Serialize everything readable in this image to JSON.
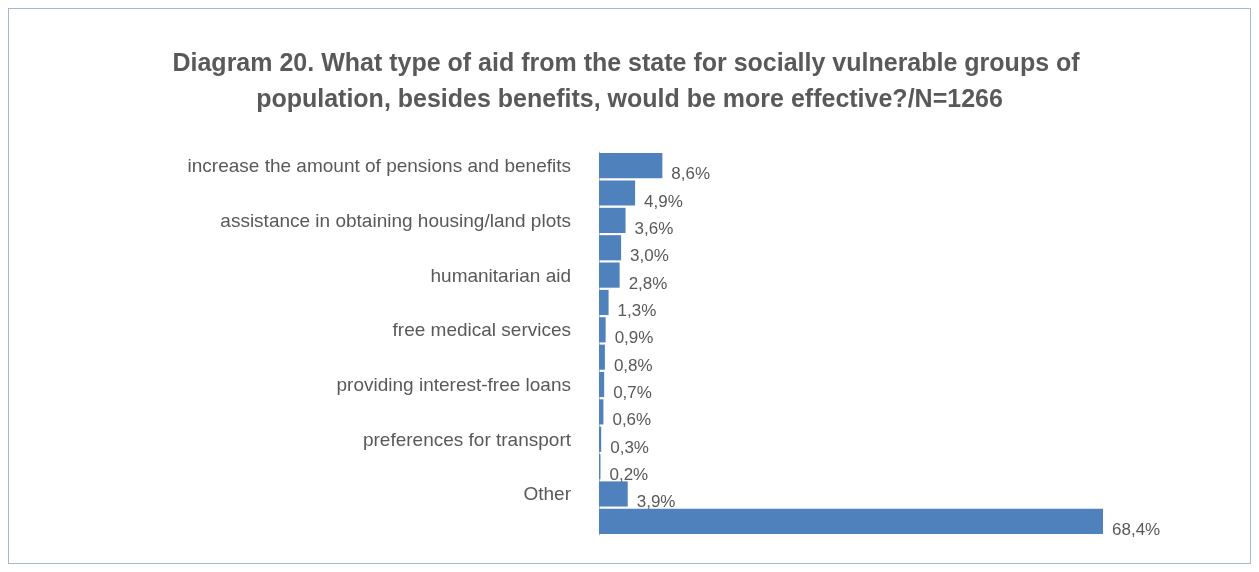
{
  "chart_data": {
    "type": "bar",
    "orientation": "horizontal",
    "title": "Diagram 20. What type of aid from the state for socially vulnerable groups of population, besides benefits, would be more effective?/N=1266",
    "categories": [
      "increase the amount of pensions and benefits",
      null,
      "assistance in obtaining housing/land plots",
      null,
      "humanitarian aid",
      null,
      "free medical services",
      null,
      "providing interest-free loans",
      null,
      "preferences for transport",
      null,
      "Other",
      null
    ],
    "values": [
      8.6,
      4.9,
      3.6,
      3.0,
      2.8,
      1.3,
      0.9,
      0.8,
      0.7,
      0.6,
      0.3,
      0.2,
      3.9,
      68.4
    ],
    "value_labels": [
      "8,6%",
      "4,9%",
      "3,6%",
      "3,0%",
      "2,8%",
      "1,3%",
      "0,9%",
      "0,8%",
      "0,7%",
      "0,6%",
      "0,3%",
      "0,2%",
      "3,9%",
      "68,4%"
    ],
    "color": "#4f81bd"
  }
}
